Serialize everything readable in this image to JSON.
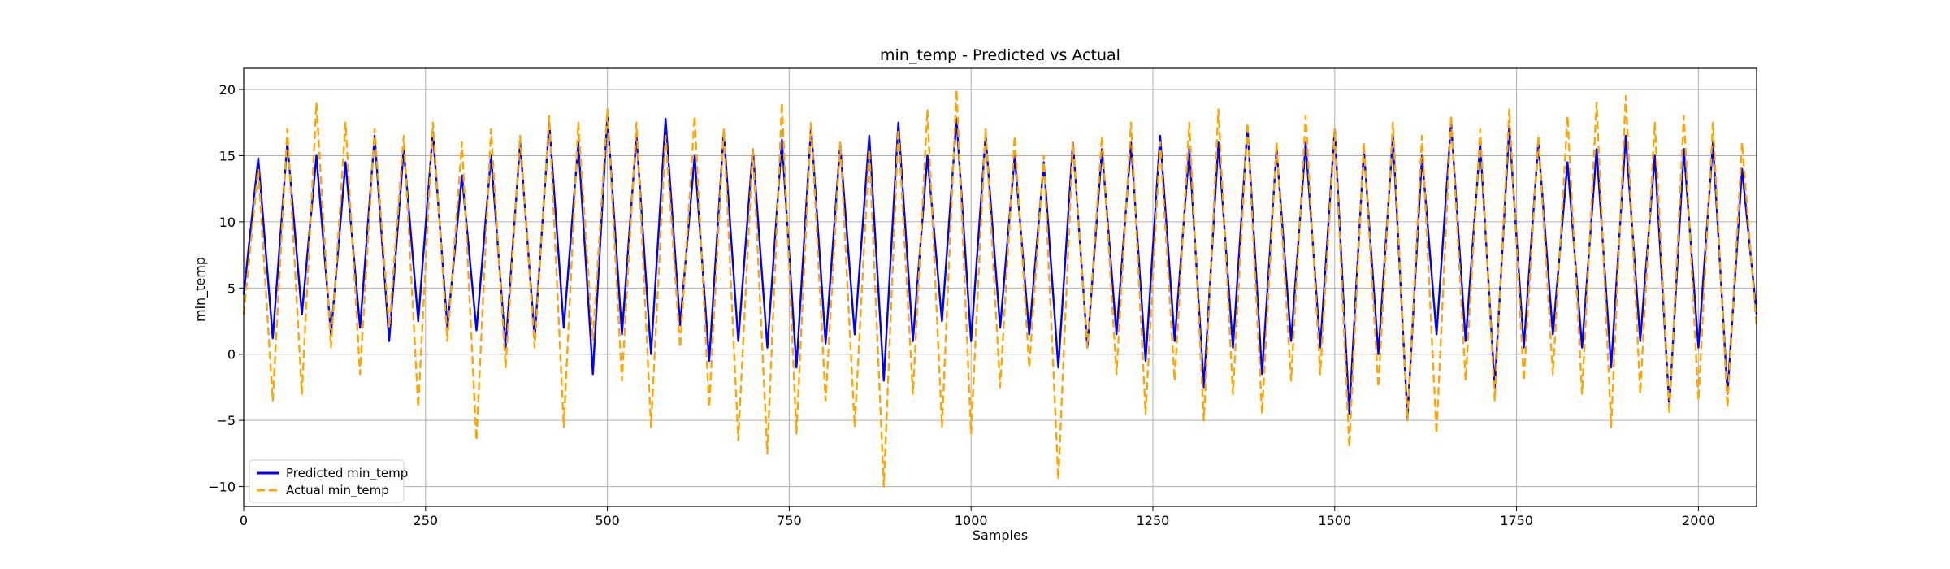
{
  "chart_data": {
    "type": "line",
    "title": "min_temp - Predicted vs Actual",
    "xlabel": "Samples",
    "ylabel": "min_temp",
    "xlim": [
      0,
      2080
    ],
    "ylim": [
      -11.5,
      21.6
    ],
    "x_ticks": [
      0,
      250,
      500,
      750,
      1000,
      1250,
      1500,
      1750,
      2000
    ],
    "y_ticks": [
      -10,
      -5,
      0,
      5,
      10,
      15,
      20
    ],
    "grid": true,
    "legend": "lower-left",
    "series": [
      {
        "name": "Predicted min_temp",
        "color": "#0000ff",
        "style": "solid",
        "x": [
          0,
          20,
          40,
          60,
          80,
          100,
          120,
          140,
          160,
          180,
          200,
          220,
          240,
          260,
          280,
          300,
          320,
          340,
          360,
          380,
          400,
          420,
          440,
          460,
          480,
          500,
          520,
          540,
          560,
          580,
          600,
          620,
          640,
          660,
          680,
          700,
          720,
          740,
          760,
          780,
          800,
          820,
          840,
          860,
          880,
          900,
          920,
          940,
          960,
          980,
          1000,
          1020,
          1040,
          1060,
          1080,
          1100,
          1120,
          1140,
          1160,
          1180,
          1200,
          1220,
          1240,
          1260,
          1280,
          1300,
          1320,
          1340,
          1360,
          1380,
          1400,
          1420,
          1440,
          1460,
          1480,
          1500,
          1520,
          1540,
          1560,
          1580,
          1600,
          1620,
          1640,
          1660,
          1680,
          1700,
          1720,
          1740,
          1760,
          1780,
          1800,
          1820,
          1840,
          1860,
          1880,
          1900,
          1920,
          1940,
          1960,
          1980,
          2000,
          2020,
          2040,
          2060,
          2080
        ],
        "values": [
          4.5,
          14.8,
          1.2,
          16.0,
          3.0,
          15.0,
          1.5,
          14.5,
          2.0,
          16.5,
          1.0,
          15.5,
          2.5,
          16.8,
          2.0,
          13.5,
          1.8,
          15.0,
          0.5,
          16.0,
          1.2,
          17.5,
          2.0,
          16.0,
          -1.5,
          18.0,
          1.5,
          16.5,
          0.0,
          17.8,
          2.2,
          15.0,
          -0.5,
          16.8,
          1.0,
          15.5,
          0.5,
          16.2,
          -1.0,
          17.2,
          0.8,
          15.8,
          1.5,
          16.5,
          -2.0,
          17.5,
          1.0,
          15.0,
          2.5,
          17.8,
          1.0,
          16.5,
          2.0,
          15.0,
          1.5,
          14.5,
          -1.0,
          16.0,
          0.5,
          15.5,
          1.5,
          16.0,
          -0.5,
          16.5,
          1.0,
          15.5,
          -2.5,
          16.0,
          0.5,
          17.2,
          -1.5,
          15.5,
          1.0,
          16.0,
          0.5,
          17.0,
          -4.5,
          15.5,
          0.0,
          16.5,
          -4.8,
          15.0,
          1.5,
          17.5,
          1.0,
          16.0,
          -2.5,
          17.2,
          0.5,
          16.0,
          1.5,
          14.5,
          0.5,
          15.5,
          -1.0,
          16.5,
          1.0,
          15.0,
          -4.0,
          15.5,
          0.5,
          16.0,
          -3.0,
          14.0,
          3.0
        ]
      },
      {
        "name": "Actual min_temp",
        "color": "#ffa500",
        "style": "dashed",
        "x": [
          0,
          20,
          40,
          60,
          80,
          100,
          120,
          140,
          160,
          180,
          200,
          220,
          240,
          260,
          280,
          300,
          320,
          340,
          360,
          380,
          400,
          420,
          440,
          460,
          480,
          500,
          520,
          540,
          560,
          580,
          600,
          620,
          640,
          660,
          680,
          700,
          720,
          740,
          760,
          780,
          800,
          820,
          840,
          860,
          880,
          900,
          920,
          940,
          960,
          980,
          1000,
          1020,
          1040,
          1060,
          1080,
          1100,
          1120,
          1140,
          1160,
          1180,
          1200,
          1220,
          1240,
          1260,
          1280,
          1300,
          1320,
          1340,
          1360,
          1380,
          1400,
          1420,
          1440,
          1460,
          1480,
          1500,
          1520,
          1540,
          1560,
          1580,
          1600,
          1620,
          1640,
          1660,
          1680,
          1700,
          1720,
          1740,
          1760,
          1780,
          1800,
          1820,
          1840,
          1860,
          1880,
          1900,
          1920,
          1940,
          1960,
          1980,
          2000,
          2020,
          2040,
          2060,
          2080
        ],
        "values": [
          3.0,
          14.0,
          -3.5,
          17.0,
          -3.0,
          19.0,
          0.5,
          17.5,
          -1.5,
          17.0,
          2.0,
          16.5,
          -4.0,
          17.5,
          1.0,
          16.0,
          -6.5,
          17.0,
          -1.0,
          16.5,
          0.5,
          18.0,
          -5.5,
          17.5,
          1.0,
          18.5,
          -2.0,
          17.5,
          -5.5,
          16.5,
          0.5,
          18.0,
          -4.0,
          17.0,
          -6.5,
          15.5,
          -7.5,
          19.0,
          -6.0,
          17.5,
          -3.5,
          16.0,
          -5.5,
          15.5,
          -10.0,
          17.0,
          -3.0,
          18.5,
          -5.5,
          20.0,
          -6.0,
          17.0,
          -2.5,
          16.5,
          -1.0,
          15.0,
          -9.5,
          16.0,
          0.5,
          16.5,
          -1.5,
          17.5,
          -4.5,
          16.0,
          -2.0,
          17.5,
          -5.0,
          18.5,
          -3.0,
          17.5,
          -4.5,
          16.0,
          -2.0,
          18.0,
          -1.5,
          17.0,
          -7.0,
          16.0,
          -2.5,
          17.5,
          -5.0,
          16.5,
          -6.0,
          18.0,
          -2.0,
          17.0,
          -3.5,
          18.5,
          -2.0,
          16.5,
          -1.5,
          18.0,
          -3.0,
          19.0,
          -5.5,
          19.5,
          -3.0,
          17.5,
          -4.5,
          18.0,
          -3.5,
          17.5,
          -4.0,
          16.0,
          2.0
        ]
      }
    ]
  }
}
